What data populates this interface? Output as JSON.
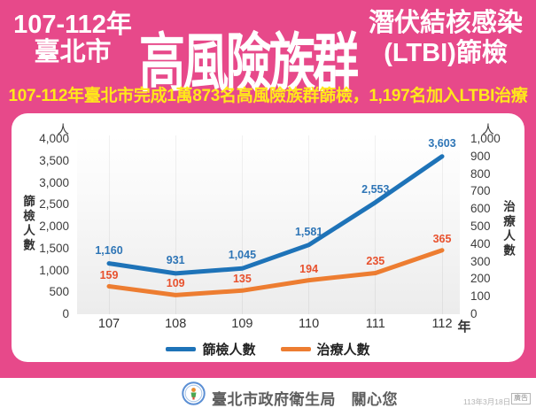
{
  "header": {
    "period": "107-112年",
    "city": "臺北市",
    "main_title": "高風險族群",
    "right_line1": "潛伏結核感染",
    "right_line2": "(LTBI)篩檢",
    "subtitle": "107-112年臺北市完成1萬873名高風險族群篩檢，1,197名加入LTBI治療"
  },
  "chart_data": {
    "type": "line",
    "categories": [
      "107",
      "108",
      "109",
      "110",
      "111",
      "112"
    ],
    "x_axis_suffix": "年",
    "series": [
      {
        "name": "篩檢人數",
        "axis": "left",
        "color": "#1e73b8",
        "label_color": "#2e75b6",
        "values": [
          1160,
          931,
          1045,
          1581,
          2553,
          3603
        ],
        "labels": [
          "1,160",
          "931",
          "1,045",
          "1,581",
          "2,553",
          "3,603"
        ]
      },
      {
        "name": "治療人數",
        "axis": "right",
        "color": "#ed7d31",
        "label_color": "#e8512d",
        "values": [
          159,
          109,
          135,
          194,
          235,
          365
        ],
        "labels": [
          "159",
          "109",
          "135",
          "194",
          "235",
          "365"
        ]
      }
    ],
    "left_axis": {
      "title": "篩檢人數",
      "unit": "人",
      "min": 0,
      "max": 4000,
      "step": 500,
      "ticks": [
        "4,000",
        "3,500",
        "3,000",
        "2,500",
        "2,000",
        "1,500",
        "1,000",
        "500",
        "0"
      ]
    },
    "right_axis": {
      "title": "治療人數",
      "unit": "人",
      "min": 0,
      "max": 1000,
      "step": 100,
      "ticks": [
        "1,000",
        "900",
        "800",
        "700",
        "600",
        "500",
        "400",
        "300",
        "200",
        "100",
        "0"
      ]
    },
    "legend_position": "bottom",
    "grid": "faint-vertical"
  },
  "footer": {
    "org": "臺北市政府衛生局　關心您",
    "date": "113年3月18日",
    "ad_label": "廣告"
  },
  "colors": {
    "background_pink": "#e7498a",
    "subtitle_yellow": "#ffe81a",
    "screening_blue": "#1e73b8",
    "treatment_orange": "#ed7d31",
    "card_white": "#ffffff"
  }
}
